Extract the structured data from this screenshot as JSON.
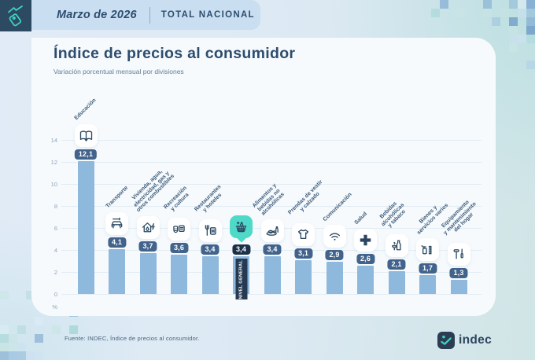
{
  "header": {
    "month": "Marzo de 2026",
    "region": "TOTAL NACIONAL",
    "logo_icon": "price-tag-trend-icon"
  },
  "chart_data": {
    "type": "bar",
    "title": "Índice de precios al consumidor",
    "subtitle": "Variación porcentual mensual por divisiones",
    "ylabel": "%",
    "ylim": [
      0,
      14
    ],
    "yticks": [
      0,
      2,
      4,
      6,
      8,
      10,
      12,
      14
    ],
    "grid": true,
    "bar_color": "#8fb8dd",
    "badge_color": "#42638b",
    "categories": [
      "Educación",
      "Transporte",
      "Vivienda, agua, electricidad, gas y otros combustibles",
      "Recreación y cultura",
      "Restaurantes y hoteles",
      "Nivel general",
      "Alimentos y bebidas no alcohólicas",
      "Prendas de vestir y calzado",
      "Comunicación",
      "Salud",
      "Bebidas alcohólicas y tabaco",
      "Bienes y servicios varios",
      "Equipamiento y mantenimiento del hogar"
    ],
    "category_lines": [
      [
        "Educación"
      ],
      [
        "Transporte"
      ],
      [
        "Vivienda, agua,",
        "electricidad, gas y",
        "otros combustibles"
      ],
      [
        "Recreación",
        "y cultura"
      ],
      [
        "Restaurantes",
        "y hoteles"
      ],
      [],
      [
        "Alimentos y",
        "bebidas no",
        "alcohólicas"
      ],
      [
        "Prendas de vestir",
        "y calzado"
      ],
      [
        "Comunicación"
      ],
      [
        "Salud"
      ],
      [
        "Bebidas",
        "alcohólicas",
        "y tabaco"
      ],
      [
        "Bienes y",
        "servicios varios"
      ],
      [
        "Equipamiento",
        "y mantenimiento",
        "del hogar"
      ]
    ],
    "values": [
      12.1,
      4.1,
      3.7,
      3.6,
      3.4,
      3.4,
      3.4,
      3.1,
      2.9,
      2.6,
      2.1,
      1.7,
      1.3
    ],
    "value_labels": [
      "12,1",
      "4,1",
      "3,7",
      "3,6",
      "3,4",
      "3,4",
      "3,4",
      "3,1",
      "2,9",
      "2,6",
      "2,1",
      "1,7",
      "1,3"
    ],
    "icons": [
      "book",
      "car",
      "house-energy",
      "culture",
      "restaurant-hotel",
      "basket",
      "food",
      "clothing",
      "wifi",
      "health-cross",
      "drinks-tobacco",
      "goods",
      "tools"
    ],
    "highlight": {
      "index": 5,
      "label": "NIVEL GENERAL",
      "badge_color": "#1b3049",
      "icon_bg": "#4fd9c8",
      "box_color": "#243a52"
    }
  },
  "footer": {
    "source": "Fuente: INDEC, Índice de precios al consumidor.",
    "logo_text": "indec"
  }
}
